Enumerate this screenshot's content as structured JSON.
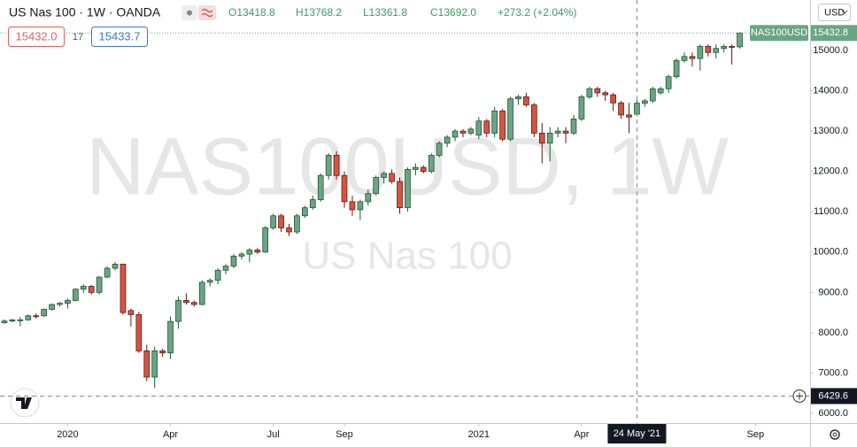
{
  "chart_data": {
    "type": "candlestick",
    "title": "US Nas 100 · 1W · OANDA",
    "legend_values": [
      "O13418.8",
      "H13768.2",
      "L13361.8",
      "C13692.0",
      "+273.2 (+2.04%)"
    ],
    "sell_price": "15432.0",
    "spread": "17",
    "buy_price": "15433.7",
    "watermark": "NAS100USD, 1W",
    "watermark_subtitle": "US Nas 100",
    "currency": "USD",
    "symbol_label": "NAS100USD",
    "last_price": 15432.8,
    "up_color": "#6ba583",
    "down_color": "#d75442",
    "grid": false,
    "ohlc": [
      [
        8250,
        8330,
        8220,
        8290
      ],
      [
        8290,
        8340,
        8260,
        8320
      ],
      [
        8310,
        8390,
        8160,
        8320
      ],
      [
        8320,
        8450,
        8300,
        8420
      ],
      [
        8420,
        8480,
        8350,
        8400
      ],
      [
        8420,
        8600,
        8390,
        8580
      ],
      [
        8580,
        8720,
        8550,
        8700
      ],
      [
        8700,
        8760,
        8650,
        8730
      ],
      [
        8730,
        8850,
        8600,
        8800
      ],
      [
        8800,
        9100,
        8780,
        9080
      ],
      [
        9080,
        9200,
        8990,
        9150
      ],
      [
        9150,
        9180,
        8950,
        9000
      ],
      [
        9000,
        9400,
        8950,
        9380
      ],
      [
        9380,
        9650,
        9350,
        9600
      ],
      [
        9600,
        9750,
        9550,
        9700
      ],
      [
        9700,
        9710,
        8450,
        8500
      ],
      [
        8550,
        8600,
        8150,
        8450
      ],
      [
        8450,
        8520,
        7500,
        7550
      ],
      [
        7550,
        7700,
        6800,
        6900
      ],
      [
        6900,
        7650,
        6630,
        7550
      ],
      [
        7550,
        7600,
        7400,
        7500
      ],
      [
        7500,
        8400,
        7350,
        8280
      ],
      [
        8280,
        8900,
        8100,
        8800
      ],
      [
        8800,
        8980,
        8700,
        8750
      ],
      [
        8750,
        8800,
        8650,
        8700
      ],
      [
        8700,
        9300,
        8680,
        9250
      ],
      [
        9250,
        9350,
        9150,
        9300
      ],
      [
        9300,
        9600,
        9200,
        9550
      ],
      [
        9550,
        9700,
        9450,
        9650
      ],
      [
        9650,
        9950,
        9600,
        9900
      ],
      [
        9900,
        10000,
        9820,
        9950
      ],
      [
        9950,
        10100,
        9750,
        10050
      ],
      [
        10050,
        10100,
        9950,
        10000
      ],
      [
        10000,
        10650,
        9980,
        10600
      ],
      [
        10600,
        10950,
        10550,
        10900
      ],
      [
        10900,
        10950,
        10500,
        10600
      ],
      [
        10600,
        10700,
        10400,
        10500
      ],
      [
        10500,
        10950,
        10450,
        10900
      ],
      [
        10900,
        11150,
        10850,
        11100
      ],
      [
        11100,
        11400,
        11050,
        11300
      ],
      [
        11300,
        11950,
        11250,
        11900
      ],
      [
        11900,
        12450,
        11800,
        12400
      ],
      [
        12400,
        12500,
        11800,
        11900
      ],
      [
        11900,
        12000,
        11100,
        11250
      ],
      [
        11250,
        11400,
        10900,
        11050
      ],
      [
        11050,
        11300,
        10800,
        11250
      ],
      [
        11250,
        11550,
        11150,
        11450
      ],
      [
        11450,
        11900,
        11400,
        11850
      ],
      [
        11850,
        12000,
        11700,
        11950
      ],
      [
        11950,
        12050,
        11700,
        11750
      ],
      [
        11750,
        11850,
        10950,
        11100
      ],
      [
        11100,
        12100,
        11000,
        12050
      ],
      [
        12050,
        12200,
        11900,
        12100
      ],
      [
        12100,
        12150,
        11950,
        12000
      ],
      [
        12000,
        12450,
        11950,
        12400
      ],
      [
        12400,
        12750,
        12350,
        12700
      ],
      [
        12700,
        12900,
        12600,
        12850
      ],
      [
        12850,
        13050,
        12750,
        13000
      ],
      [
        13000,
        13050,
        12850,
        12950
      ],
      [
        12950,
        13100,
        12900,
        13050
      ],
      [
        12900,
        13350,
        12800,
        13250
      ],
      [
        13250,
        13300,
        12850,
        12950
      ],
      [
        12950,
        13600,
        12850,
        13500
      ],
      [
        13500,
        13550,
        12750,
        12800
      ],
      [
        12800,
        13850,
        12750,
        13800
      ],
      [
        13800,
        13900,
        13650,
        13850
      ],
      [
        13850,
        13950,
        13600,
        13650
      ],
      [
        13650,
        13700,
        12850,
        12950
      ],
      [
        12950,
        13200,
        12200,
        12700
      ],
      [
        12700,
        13100,
        12250,
        12950
      ],
      [
        12950,
        13100,
        12850,
        13000
      ],
      [
        13000,
        13100,
        12700,
        12950
      ],
      [
        12950,
        13400,
        12900,
        13300
      ],
      [
        13300,
        13900,
        13250,
        13850
      ],
      [
        13850,
        14100,
        13800,
        14050
      ],
      [
        14050,
        14100,
        13850,
        13950
      ],
      [
        13950,
        14000,
        13750,
        13900
      ],
      [
        13900,
        13950,
        13500,
        13700
      ],
      [
        13700,
        13750,
        13300,
        13400
      ],
      [
        13400,
        13700,
        12950,
        13350
      ],
      [
        13418.8,
        13768.2,
        13361.8,
        13692.0
      ],
      [
        13692,
        13800,
        13600,
        13750
      ],
      [
        13750,
        14100,
        13700,
        14050
      ],
      [
        13950,
        14100,
        13900,
        14050
      ],
      [
        14050,
        14400,
        13950,
        14350
      ],
      [
        14350,
        14800,
        14300,
        14750
      ],
      [
        14750,
        14950,
        14700,
        14850
      ],
      [
        14850,
        14950,
        14600,
        14800
      ],
      [
        14800,
        15150,
        14500,
        15100
      ],
      [
        15100,
        15150,
        14850,
        14950
      ],
      [
        14950,
        15150,
        14800,
        15050
      ],
      [
        15050,
        15150,
        14950,
        15100
      ],
      [
        15100,
        15150,
        14650,
        15090
      ],
      [
        15090,
        15450,
        15050,
        15432.8
      ]
    ],
    "xlim": [
      -0.56,
      101.9
    ],
    "xticks": [
      {
        "value": 8,
        "label": "2020"
      },
      {
        "value": 21,
        "label": "Apr"
      },
      {
        "value": 34,
        "label": "Jul"
      },
      {
        "value": 43,
        "label": "Sep"
      },
      {
        "value": 60,
        "label": "2021"
      },
      {
        "value": 73,
        "label": "Apr"
      },
      {
        "value": 95,
        "label": "Sep"
      }
    ],
    "ylim": [
      5759,
      16251
    ],
    "yticks": [
      {
        "value": 6000,
        "label": "6000.0"
      },
      {
        "value": 7000,
        "label": "7000.0"
      },
      {
        "value": 8000,
        "label": "8000.0"
      },
      {
        "value": 9000,
        "label": "9000.0"
      },
      {
        "value": 10000,
        "label": "10000.0"
      },
      {
        "value": 11000,
        "label": "11000.0"
      },
      {
        "value": 12000,
        "label": "12000.0"
      },
      {
        "value": 13000,
        "label": "13000.0"
      },
      {
        "value": 14000,
        "label": "14000.0"
      },
      {
        "value": 15000,
        "label": "15000.0"
      }
    ],
    "crosshair": {
      "x": 80,
      "x_label": "24 May '21",
      "y": 6429.6
    }
  }
}
